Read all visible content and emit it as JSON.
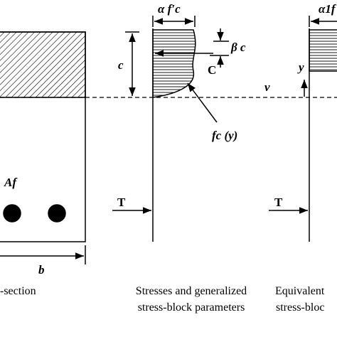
{
  "labels": {
    "stress_width": "α f′c",
    "depth": "c",
    "beta_c": "β c",
    "compression": "C",
    "neutral_axis": "ν",
    "fc_y": "fc (y)",
    "area": "Af",
    "width": "b",
    "tension_1": "T",
    "tension_2": "T",
    "y_axis": "y",
    "equiv_width": "α1f"
  },
  "captions": {
    "section": "-section",
    "stresses_1": "Stresses and generalized",
    "stresses_2": "stress-block parameters",
    "equivalent_1": "Equivalent",
    "equivalent_2": "stress-bloc"
  }
}
